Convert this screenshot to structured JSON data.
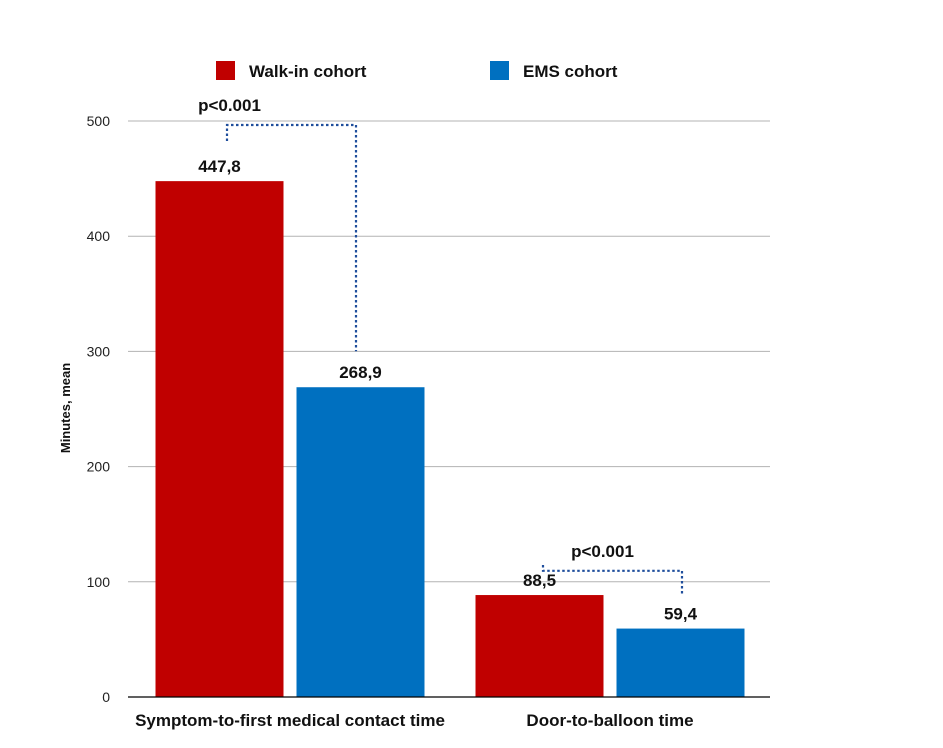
{
  "chart_data": {
    "type": "bar",
    "title": "",
    "xlabel": "",
    "ylabel": "Minutes, mean",
    "ylim": [
      0,
      500
    ],
    "yticks": [
      0,
      100,
      200,
      300,
      400,
      500
    ],
    "grid": true,
    "legend_position": "top",
    "categories": [
      "Symptom-to-first medical contact time",
      "Door-to-balloon time"
    ],
    "series": [
      {
        "name": "Walk-in cohort",
        "color": "#c00000",
        "values": [
          447.8,
          88.5
        ],
        "labels": [
          "447,8",
          "88,5"
        ]
      },
      {
        "name": "EMS cohort",
        "color": "#0070c0",
        "values": [
          268.9,
          59.4
        ],
        "labels": [
          "268,9",
          "59,4"
        ]
      }
    ],
    "annotations": [
      {
        "category": "Symptom-to-first medical contact time",
        "text": "p<0.001",
        "bracket_level": 500
      },
      {
        "category": "Door-to-balloon time",
        "text": "p<0.001",
        "bracket_level": 113
      }
    ]
  }
}
